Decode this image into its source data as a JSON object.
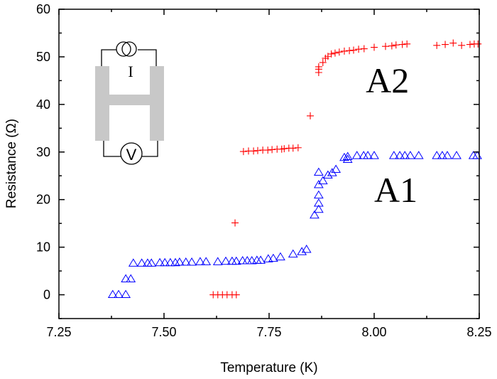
{
  "chart_data": {
    "type": "scatter",
    "xlabel": "Temperature (K)",
    "ylabel": "Resistance (Ω)",
    "xlim": [
      7.25,
      8.25
    ],
    "ylim": [
      -5,
      60
    ],
    "xticks": [
      "7.25",
      "7.50",
      "7.75",
      "8.00",
      "8.25"
    ],
    "xtick_values": [
      7.25,
      7.5,
      7.75,
      8.0,
      8.25
    ],
    "yticks": [
      "0",
      "10",
      "20",
      "30",
      "40",
      "50",
      "60"
    ],
    "ytick_values": [
      0,
      10,
      20,
      30,
      40,
      50,
      60
    ],
    "grid": false,
    "annotations": [
      {
        "text": "A2",
        "x": 7.98,
        "y": 42.5
      },
      {
        "text": "A1",
        "x": 8.0,
        "y": 19.5
      }
    ],
    "inset": {
      "current_label": "I",
      "voltage_label": "V"
    },
    "series": [
      {
        "label": "A1",
        "marker": "triangle",
        "color": "#0000ff",
        "points": [
          [
            7.378,
            0
          ],
          [
            7.392,
            0
          ],
          [
            7.409,
            0
          ],
          [
            7.409,
            3.3
          ],
          [
            7.421,
            3.3
          ],
          [
            7.427,
            6.6
          ],
          [
            7.447,
            6.6
          ],
          [
            7.461,
            6.6
          ],
          [
            7.47,
            6.6
          ],
          [
            7.49,
            6.7
          ],
          [
            7.502,
            6.7
          ],
          [
            7.515,
            6.7
          ],
          [
            7.527,
            6.7
          ],
          [
            7.537,
            6.8
          ],
          [
            7.552,
            6.8
          ],
          [
            7.566,
            6.8
          ],
          [
            7.586,
            6.9
          ],
          [
            7.6,
            6.9
          ],
          [
            7.628,
            6.9
          ],
          [
            7.647,
            7.0
          ],
          [
            7.662,
            7.0
          ],
          [
            7.672,
            7.0
          ],
          [
            7.687,
            7.1
          ],
          [
            7.698,
            7.1
          ],
          [
            7.709,
            7.1
          ],
          [
            7.721,
            7.2
          ],
          [
            7.73,
            7.2
          ],
          [
            7.748,
            7.5
          ],
          [
            7.76,
            7.6
          ],
          [
            7.777,
            7.9
          ],
          [
            7.807,
            8.5
          ],
          [
            7.828,
            9.0
          ],
          [
            7.839,
            9.5
          ],
          [
            7.858,
            16.7
          ],
          [
            7.868,
            17.9
          ],
          [
            7.868,
            19.2
          ],
          [
            7.868,
            20.9
          ],
          [
            7.868,
            23.1
          ],
          [
            7.868,
            25.7
          ],
          [
            7.878,
            23.9
          ],
          [
            7.89,
            25.1
          ],
          [
            7.9,
            25.6
          ],
          [
            7.909,
            26.3
          ],
          [
            7.929,
            28.8
          ],
          [
            7.937,
            28.4
          ],
          [
            7.937,
            29.0
          ],
          [
            7.959,
            29.2
          ],
          [
            7.975,
            29.2
          ],
          [
            7.985,
            29.2
          ],
          [
            8.0,
            29.2
          ],
          [
            8.047,
            29.2
          ],
          [
            8.061,
            29.2
          ],
          [
            8.073,
            29.2
          ],
          [
            8.086,
            29.2
          ],
          [
            8.106,
            29.2
          ],
          [
            8.149,
            29.2
          ],
          [
            8.162,
            29.2
          ],
          [
            8.174,
            29.2
          ],
          [
            8.196,
            29.2
          ],
          [
            8.236,
            29.2
          ],
          [
            8.245,
            29.2
          ]
        ]
      },
      {
        "label": "A2",
        "marker": "plus",
        "color": "#ff0000",
        "points": [
          [
            7.617,
            0
          ],
          [
            7.628,
            0
          ],
          [
            7.639,
            0
          ],
          [
            7.65,
            0
          ],
          [
            7.662,
            0
          ],
          [
            7.672,
            0
          ],
          [
            7.669,
            15.1
          ],
          [
            7.689,
            30.1
          ],
          [
            7.701,
            30.2
          ],
          [
            7.713,
            30.2
          ],
          [
            7.723,
            30.3
          ],
          [
            7.735,
            30.4
          ],
          [
            7.747,
            30.4
          ],
          [
            7.757,
            30.5
          ],
          [
            7.769,
            30.6
          ],
          [
            7.78,
            30.6
          ],
          [
            7.786,
            30.7
          ],
          [
            7.797,
            30.8
          ],
          [
            7.807,
            30.8
          ],
          [
            7.819,
            30.9
          ],
          [
            7.848,
            37.6
          ],
          [
            7.868,
            46.7
          ],
          [
            7.868,
            47.4
          ],
          [
            7.868,
            47.9
          ],
          [
            7.878,
            48.8
          ],
          [
            7.884,
            49.7
          ],
          [
            7.89,
            50.1
          ],
          [
            7.898,
            50.6
          ],
          [
            7.907,
            50.8
          ],
          [
            7.917,
            51.0
          ],
          [
            7.929,
            51.2
          ],
          [
            7.941,
            51.3
          ],
          [
            7.951,
            51.4
          ],
          [
            7.963,
            51.6
          ],
          [
            7.976,
            51.7
          ],
          [
            8.0,
            52.0
          ],
          [
            8.027,
            52.2
          ],
          [
            8.042,
            52.3
          ],
          [
            8.052,
            52.5
          ],
          [
            8.067,
            52.6
          ],
          [
            8.078,
            52.7
          ],
          [
            8.149,
            52.4
          ],
          [
            8.169,
            52.6
          ],
          [
            8.188,
            52.9
          ],
          [
            8.208,
            52.4
          ],
          [
            8.228,
            52.6
          ],
          [
            8.238,
            52.7
          ],
          [
            8.247,
            52.7
          ]
        ]
      }
    ]
  }
}
